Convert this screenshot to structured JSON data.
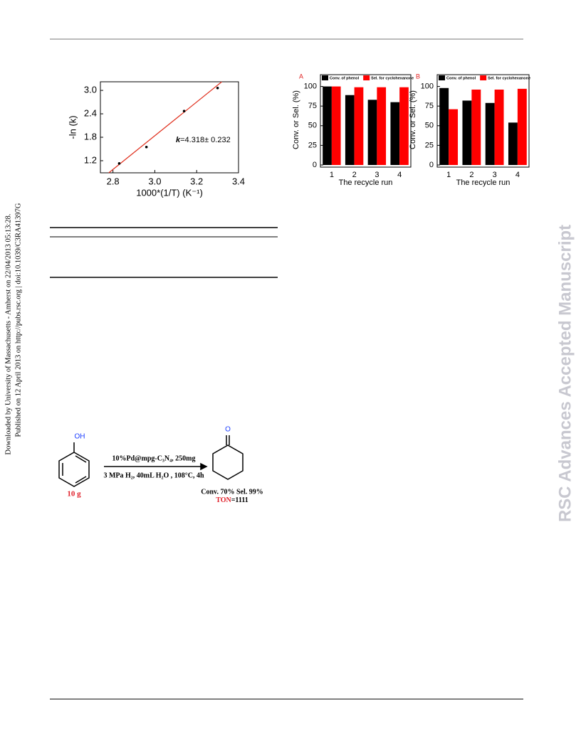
{
  "sidebar": {
    "line1": "Downloaded by University of Massachusetts - Amherst on 22/04/2013 05:13:28.",
    "line2": "Published on 12 April 2013 on http://pubs.rsc.org | doi:10.1039/C3RA41397G"
  },
  "watermark": "RSC Advances Accepted Manuscript",
  "chart_data": [
    {
      "type": "scatter",
      "x": [
        2.83,
        2.96,
        3.14,
        3.3
      ],
      "values": [
        1.13,
        1.55,
        2.47,
        3.06
      ],
      "color": "#000000",
      "fit": {
        "x": [
          2.78,
          3.32
        ],
        "values": [
          0.89,
          3.22
        ],
        "color": "#e0301e"
      },
      "xlabel": "1000*(1/T)  (K⁻¹)",
      "ylabel": "-ln (k)",
      "annotation": {
        "symbol": "k",
        "text": "=4.318± 0.232"
      },
      "xlim": [
        2.74,
        3.4
      ],
      "xticks": [
        2.8,
        {
          "value": 3,
          "label": "3.0"
        },
        3.2,
        3.4
      ],
      "ylim": [
        0.89,
        3.22
      ],
      "yticks": [
        1.2,
        1.8,
        2.4,
        {
          "value": 3,
          "label": "3.0"
        }
      ]
    },
    {
      "type": "bar",
      "panel": "A",
      "categories": [
        "1",
        "2",
        "3",
        "4"
      ],
      "series": [
        {
          "name": "Conv. of phenol",
          "color": "#000000",
          "values": [
            100,
            89,
            83,
            80
          ]
        },
        {
          "name": "Sel. for cyclohexanone",
          "color": "#ff0000",
          "values": [
            100,
            99,
            99,
            99
          ]
        }
      ],
      "xlabel": "The recycle run",
      "ylabel": "Conv. or Sel. (%)",
      "ylim": [
        0,
        115
      ],
      "yticks": [
        0,
        25,
        50,
        75,
        100
      ]
    },
    {
      "type": "bar",
      "panel": "B",
      "categories": [
        "1",
        "2",
        "3",
        "4"
      ],
      "series": [
        {
          "name": "Conv. of phenol",
          "color": "#000000",
          "values": [
            98,
            82,
            79,
            54
          ]
        },
        {
          "name": "Sel. for cyclohexanone",
          "color": "#ff0000",
          "values": [
            71,
            96,
            96,
            97
          ]
        }
      ],
      "xlabel": "The recycle run",
      "ylabel": "Conv. or Sel. (%)",
      "ylim": [
        0,
        115
      ],
      "yticks": [
        0,
        25,
        50,
        75,
        100
      ]
    }
  ],
  "scheme": {
    "reactant_group": "OH",
    "reactant_amount": "10 g",
    "conditions_top": "10%Pd@mpg-C₃N₄, 250mg",
    "conditions_bottom": "3 MPa H₂, 40mL H₂O , 108°C,  4h",
    "product_group": "O",
    "result": "Conv. 70%  Sel. 99%",
    "ton_label": "TON",
    "ton_value": "=1111"
  }
}
